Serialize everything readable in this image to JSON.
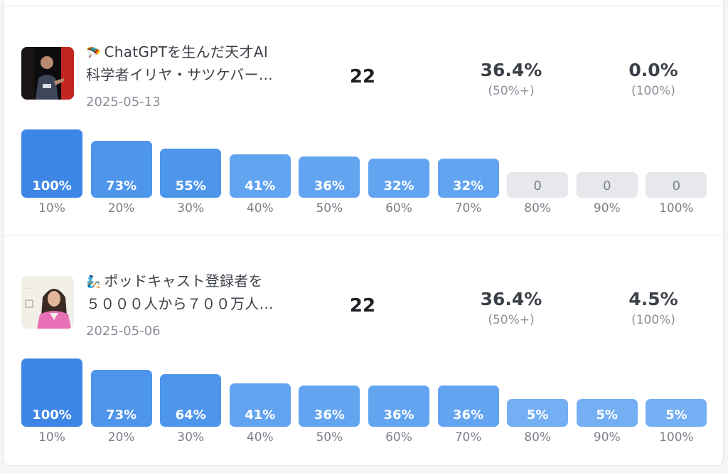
{
  "colors": {
    "bar_dark": "#3d86e6",
    "bar_mid": "#4e95ec",
    "bar_light": "#63a4f1",
    "bar_lighter": "#74aef3",
    "bar_zero": "#e6e8ec"
  },
  "tick_labels": [
    "10%",
    "20%",
    "30%",
    "40%",
    "50%",
    "60%",
    "70%",
    "80%",
    "90%",
    "100%"
  ],
  "cards": [
    {
      "thumbnail_icon": "speaker-on-stage-photo",
      "title_emoji": "🪂",
      "title_line1": "ChatGPTを生んだ天才AI",
      "title_line2": "科学者イリヤ・サツケバー…",
      "date": "2025-05-13",
      "count": "22",
      "stat1_value": "36.4%",
      "stat1_label": "(50%+)",
      "stat2_value": "0.0%",
      "stat2_label": "(100%)",
      "bars": [
        {
          "value": 100,
          "label": "100%"
        },
        {
          "value": 73,
          "label": "73%"
        },
        {
          "value": 55,
          "label": "55%"
        },
        {
          "value": 41,
          "label": "41%"
        },
        {
          "value": 36,
          "label": "36%"
        },
        {
          "value": 32,
          "label": "32%"
        },
        {
          "value": 32,
          "label": "32%"
        },
        {
          "value": 0,
          "label": "0"
        },
        {
          "value": 0,
          "label": "0"
        },
        {
          "value": 0,
          "label": "0"
        }
      ]
    },
    {
      "thumbnail_icon": "woman-in-pink-photo",
      "title_emoji": "🧞",
      "title_line1": "ポッドキャスト登録者を",
      "title_line2": "５０００人から７００万人…",
      "date": "2025-05-06",
      "count": "22",
      "stat1_value": "36.4%",
      "stat1_label": "(50%+)",
      "stat2_value": "4.5%",
      "stat2_label": "(100%)",
      "bars": [
        {
          "value": 100,
          "label": "100%"
        },
        {
          "value": 73,
          "label": "73%"
        },
        {
          "value": 64,
          "label": "64%"
        },
        {
          "value": 41,
          "label": "41%"
        },
        {
          "value": 36,
          "label": "36%"
        },
        {
          "value": 36,
          "label": "36%"
        },
        {
          "value": 36,
          "label": "36%"
        },
        {
          "value": 5,
          "label": "5%"
        },
        {
          "value": 5,
          "label": "5%"
        },
        {
          "value": 5,
          "label": "5%"
        }
      ]
    }
  ]
}
